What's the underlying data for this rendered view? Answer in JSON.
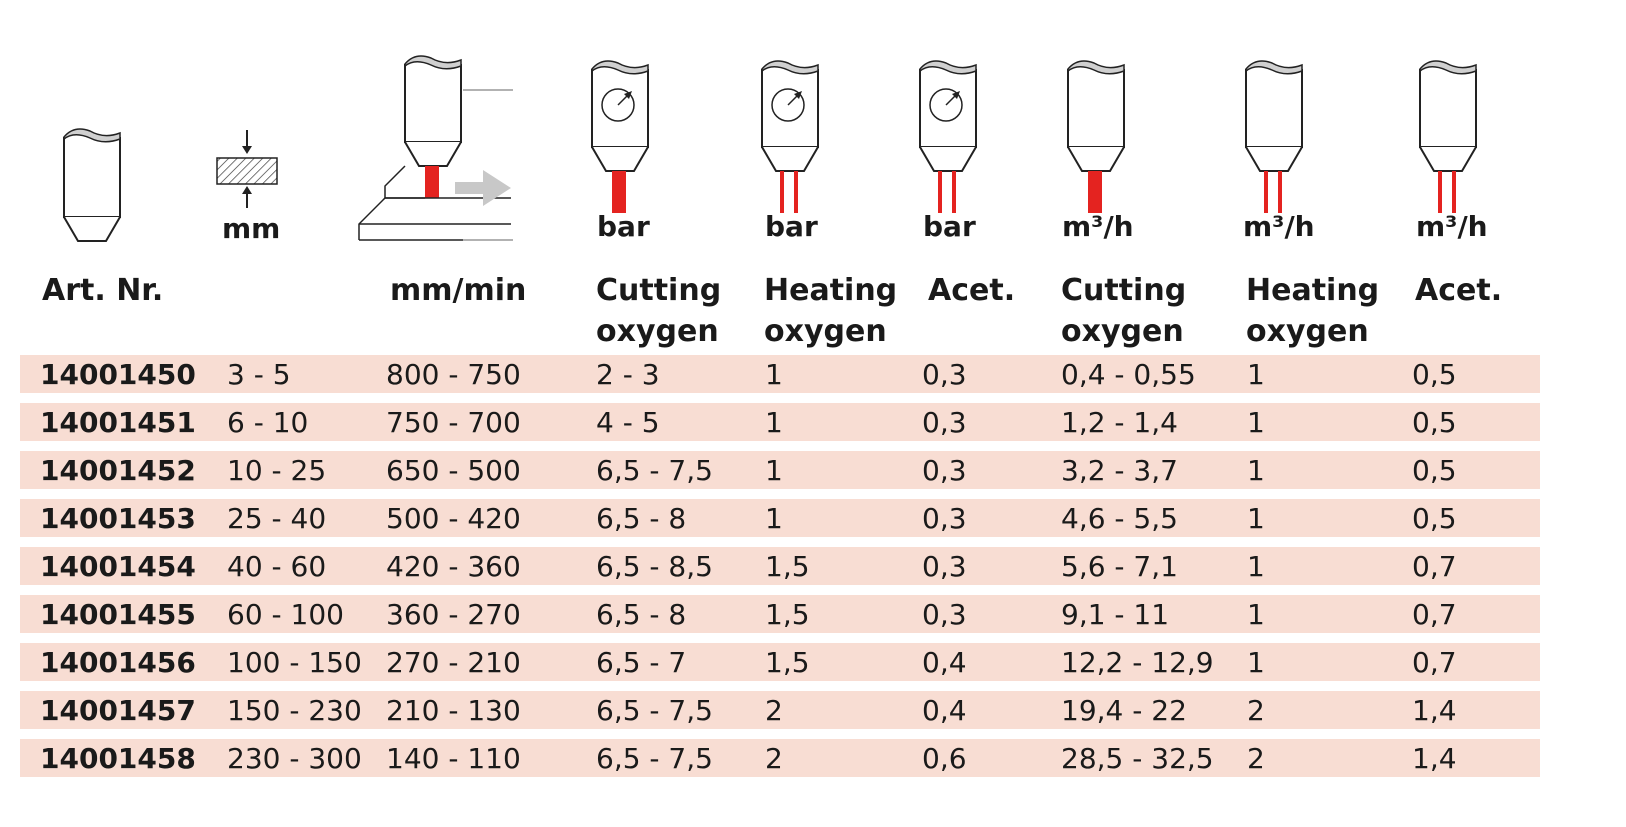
{
  "colors": {
    "row_background": "#f8ddd3",
    "jet": "#e42320",
    "nozzle_cap": "#d0d0d0",
    "arrow": "#c8c8c8"
  },
  "icons": [
    "nozzle-icon",
    "thickness-icon",
    "cutting-speed-icon",
    "pressure-gauge-icon",
    "flow-icon"
  ],
  "units": {
    "thickness": "mm",
    "cutting_pressure": "bar",
    "heating_pressure": "bar",
    "acet_pressure": "bar",
    "cutting_flow": "m³/h",
    "heating_flow": "m³/h",
    "acet_flow": "m³/h"
  },
  "headers": {
    "art_nr": "Art. Nr.",
    "speed": "mm/min",
    "cutting_pressure": [
      "Cutting",
      "oxygen"
    ],
    "heating_pressure": [
      "Heating",
      "oxygen"
    ],
    "acet_pressure": "Acet.",
    "cutting_flow": [
      "Cutting",
      "oxygen"
    ],
    "heating_flow": [
      "Heating",
      "oxygen"
    ],
    "acet_flow": "Acet."
  },
  "rows": [
    {
      "art": "14001450",
      "thickness": "3 - 5",
      "speed": "800 - 750",
      "cut_bar": "2 - 3",
      "heat_bar": "1",
      "acet_bar": "0,3",
      "cut_flow": "0,4 - 0,55",
      "heat_flow": "1",
      "acet_flow": "0,5"
    },
    {
      "art": "14001451",
      "thickness": "6 - 10",
      "speed": "750 - 700",
      "cut_bar": "4 - 5",
      "heat_bar": "1",
      "acet_bar": "0,3",
      "cut_flow": "1,2 - 1,4",
      "heat_flow": "1",
      "acet_flow": "0,5"
    },
    {
      "art": "14001452",
      "thickness": "10 - 25",
      "speed": "650 - 500",
      "cut_bar": "6,5 - 7,5",
      "heat_bar": "1",
      "acet_bar": "0,3",
      "cut_flow": "3,2 - 3,7",
      "heat_flow": "1",
      "acet_flow": "0,5"
    },
    {
      "art": "14001453",
      "thickness": "25 - 40",
      "speed": "500 - 420",
      "cut_bar": "6,5 - 8",
      "heat_bar": "1",
      "acet_bar": "0,3",
      "cut_flow": "4,6 - 5,5",
      "heat_flow": "1",
      "acet_flow": "0,5"
    },
    {
      "art": "14001454",
      "thickness": "40 - 60",
      "speed": "420 - 360",
      "cut_bar": "6,5 - 8,5",
      "heat_bar": "1,5",
      "acet_bar": "0,3",
      "cut_flow": "5,6 - 7,1",
      "heat_flow": "1",
      "acet_flow": "0,7"
    },
    {
      "art": "14001455",
      "thickness": "60 - 100",
      "speed": "360 - 270",
      "cut_bar": "6,5 - 8",
      "heat_bar": "1,5",
      "acet_bar": "0,3",
      "cut_flow": "9,1 - 11",
      "heat_flow": "1",
      "acet_flow": "0,7"
    },
    {
      "art": "14001456",
      "thickness": "100 - 150",
      "speed": "270 - 210",
      "cut_bar": "6,5 - 7",
      "heat_bar": "1,5",
      "acet_bar": "0,4",
      "cut_flow": "12,2 - 12,9",
      "heat_flow": "1",
      "acet_flow": "0,7"
    },
    {
      "art": "14001457",
      "thickness": "150 - 230",
      "speed": "210 - 130",
      "cut_bar": "6,5 - 7,5",
      "heat_bar": "2",
      "acet_bar": "0,4",
      "cut_flow": "19,4 - 22",
      "heat_flow": "2",
      "acet_flow": "1,4"
    },
    {
      "art": "14001458",
      "thickness": "230 - 300",
      "speed": "140 - 110",
      "cut_bar": "6,5 - 7,5",
      "heat_bar": "2",
      "acet_bar": "0,6",
      "cut_flow": "28,5 - 32,5",
      "heat_flow": "2",
      "acet_flow": "1,4"
    }
  ]
}
